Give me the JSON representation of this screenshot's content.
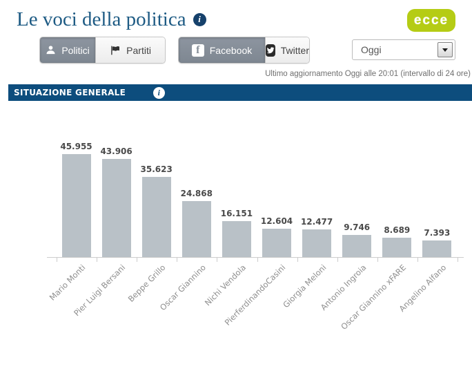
{
  "header": {
    "title": "Le voci della politica",
    "info_glyph": "i",
    "logo_text": "ecce"
  },
  "toolbar": {
    "entity_tabs": [
      {
        "label": "Politici",
        "icon": "person-icon",
        "active": true
      },
      {
        "label": "Partiti",
        "icon": "flag-icon",
        "active": false
      }
    ],
    "network_tabs": [
      {
        "label": "Facebook",
        "icon": "facebook-icon",
        "active": true
      },
      {
        "label": "Twitter",
        "icon": "twitter-icon",
        "active": false
      }
    ],
    "period_select": {
      "value": "Oggi"
    }
  },
  "status": {
    "last_update": "Ultimo aggiornamento Oggi alle 20:01 (intervallo di 24 ore)"
  },
  "section_header": {
    "title": "SITUAZIONE GENERALE",
    "info_glyph": "i"
  },
  "chart_data": {
    "type": "bar",
    "title": "",
    "xlabel": "",
    "ylabel": "",
    "categories": [
      "Mario Monti",
      "Pier Luigi Bersani",
      "Beppe Grillo",
      "Oscar Giannino",
      "Nichi Vendola",
      "PierferdinandoCasini",
      "Giorgia Meloni",
      "Antonio Ingroia",
      "Oscar Giannino xFARE",
      "Angelino Alfano"
    ],
    "values": [
      45955,
      43906,
      35623,
      24868,
      16151,
      12604,
      12477,
      9746,
      8689,
      7393
    ],
    "value_labels": [
      "45.955",
      "43.906",
      "35.623",
      "24.868",
      "16.151",
      "12.604",
      "12.477",
      "9.746",
      "8.689",
      "7.393"
    ],
    "ylim": [
      0,
      46000
    ],
    "grid": false,
    "legend": "none",
    "label_rotation": -45,
    "bar_color": "#b9c1c7"
  },
  "colors": {
    "title_blue": "#1e5b84",
    "header_blue": "#0d4d7d",
    "badge_navy": "#16416b",
    "logo_green": "#b5cc15",
    "active_tab_gray": "#858d97",
    "bar_gray": "#b9c1c7"
  }
}
